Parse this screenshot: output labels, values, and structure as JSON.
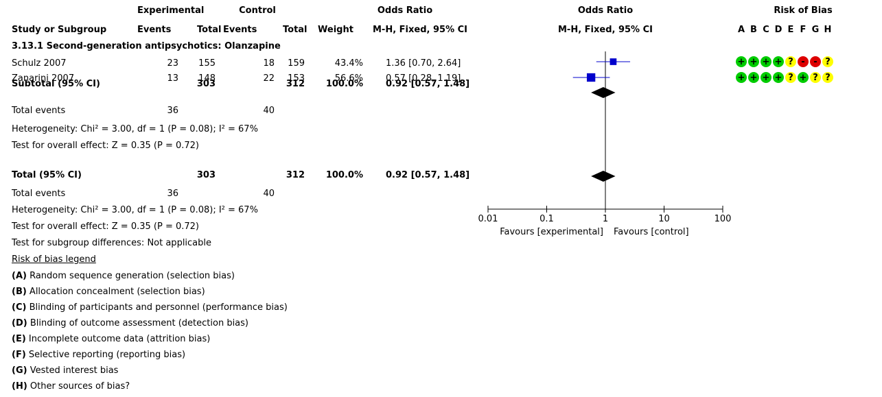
{
  "header": {
    "experimental": "Experimental",
    "control": "Control",
    "or_group": "Odds Ratio",
    "or_plot": "Odds Ratio",
    "rob": "Risk of Bias",
    "study": "Study or Subgroup",
    "events": "Events",
    "total": "Total",
    "weight": "Weight",
    "method_table": "M-H, Fixed, 95% CI",
    "method_plot": "M-H, Fixed, 95% CI",
    "rob_letters": [
      "A",
      "B",
      "C",
      "D",
      "E",
      "F",
      "G",
      "H"
    ]
  },
  "subgroup_title": "3.13.1 Second-generation antipsychotics: Olanzapine",
  "studies": [
    {
      "name": "Schulz 2007",
      "exp_events": "23",
      "exp_total": "155",
      "ctl_events": "18",
      "ctl_total": "159",
      "weight": "43.4%",
      "ci": "1.36 [0.70, 2.64]",
      "or": 1.36,
      "lo": 0.7,
      "hi": 2.64,
      "weight_pct": 43.4,
      "rob": [
        "+",
        "+",
        "+",
        "+",
        "?",
        "-",
        "-",
        "?"
      ]
    },
    {
      "name": "Zanarini 2007",
      "exp_events": "13",
      "exp_total": "148",
      "ctl_events": "22",
      "ctl_total": "153",
      "weight": "56.6%",
      "ci": "0.57 [0.28, 1.19]",
      "or": 0.57,
      "lo": 0.28,
      "hi": 1.19,
      "weight_pct": 56.6,
      "rob": [
        "+",
        "+",
        "+",
        "+",
        "?",
        "+",
        "?",
        "?"
      ]
    }
  ],
  "subtotal": {
    "label": "Subtotal (95% CI)",
    "exp_total": "303",
    "ctl_total": "312",
    "weight": "100.0%",
    "ci": "0.92 [0.57, 1.48]",
    "or": 0.92,
    "lo": 0.57,
    "hi": 1.48
  },
  "subgroup_stats": {
    "total_events_label": "Total events",
    "exp_events": "36",
    "ctl_events": "40",
    "heterogeneity": "Heterogeneity: Chi² = 3.00, df = 1 (P = 0.08); I² = 67%",
    "overall": "Test for overall effect: Z = 0.35 (P = 0.72)"
  },
  "total": {
    "label": "Total (95% CI)",
    "exp_total": "303",
    "ctl_total": "312",
    "weight": "100.0%",
    "ci": "0.92 [0.57, 1.48]",
    "or": 0.92,
    "lo": 0.57,
    "hi": 1.48
  },
  "total_stats": {
    "total_events_label": "Total events",
    "exp_events": "36",
    "ctl_events": "40",
    "heterogeneity": "Heterogeneity: Chi² = 3.00, df = 1 (P = 0.08); I² = 67%",
    "overall": "Test for overall effect: Z = 0.35 (P = 0.72)",
    "subgroup_diff": "Test for subgroup differences: Not applicable"
  },
  "legend": {
    "title": "Risk of bias legend",
    "items": [
      {
        "key": "(A)",
        "text": " Random sequence generation (selection bias)"
      },
      {
        "key": "(B)",
        "text": " Allocation concealment (selection bias)"
      },
      {
        "key": "(C)",
        "text": " Blinding of participants and personnel (performance bias)"
      },
      {
        "key": "(D)",
        "text": " Blinding of outcome assessment (detection bias)"
      },
      {
        "key": "(E)",
        "text": " Incomplete outcome data (attrition bias)"
      },
      {
        "key": "(F)",
        "text": " Selective reporting (reporting bias)"
      },
      {
        "key": "(G)",
        "text": " Vested interest bias"
      },
      {
        "key": "(H)",
        "text": " Other sources of bias?"
      }
    ]
  },
  "axis": {
    "ticks": [
      0.01,
      0.1,
      1,
      10,
      100
    ],
    "tick_labels": [
      "0.01",
      "0.1",
      "1",
      "10",
      "100"
    ],
    "favours_left": "Favours [experimental]",
    "favours_right": "Favours [control]"
  },
  "colors": {
    "square": "#0000cc",
    "diamond": "#000000",
    "low_risk": "#00cc00",
    "unclear_risk": "#ffff00",
    "high_risk": "#dd0000"
  },
  "chart_data": {
    "type": "scatter",
    "title": "Odds Ratio",
    "xlabel": "M-H, Fixed, 95% CI",
    "x_scale": "log",
    "xlim": [
      0.01,
      100
    ],
    "categories": [
      "Schulz 2007",
      "Zanarini 2007",
      "Subtotal (95% CI)",
      "Total (95% CI)"
    ],
    "series": [
      {
        "name": "Odds Ratio",
        "values": [
          1.36,
          0.57,
          0.92,
          0.92
        ]
      },
      {
        "name": "CI lower",
        "values": [
          0.7,
          0.28,
          0.57,
          0.57
        ]
      },
      {
        "name": "CI upper",
        "values": [
          2.64,
          1.19,
          1.48,
          1.48
        ]
      },
      {
        "name": "Weight",
        "values": [
          43.4,
          56.6,
          100.0,
          100.0
        ]
      }
    ]
  }
}
